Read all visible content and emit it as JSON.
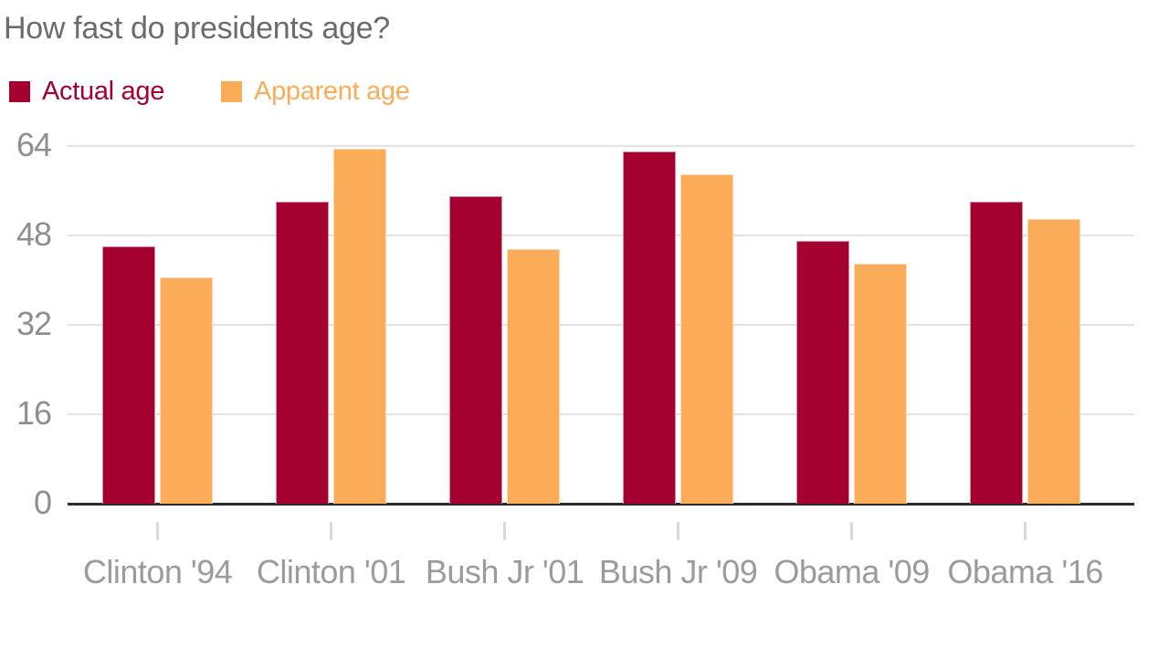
{
  "chart": {
    "title": "How fast do presidents age?"
  },
  "chart_data": {
    "type": "bar",
    "title": "How fast do presidents age?",
    "categories": [
      "Clinton '94",
      "Clinton '01",
      "Bush Jr '01",
      "Bush Jr '09",
      "Obama '09",
      "Obama '16"
    ],
    "series": [
      {
        "name": "Actual age",
        "color": "#a40030",
        "values": [
          46,
          54,
          55,
          63,
          47,
          54
        ]
      },
      {
        "name": "Apparent age",
        "color": "#fbac58",
        "values": [
          40.5,
          63.5,
          45.5,
          59,
          43,
          51
        ]
      }
    ],
    "xlabel": "",
    "ylabel": "",
    "yticks": [
      0,
      16,
      32,
      48,
      64
    ],
    "ylim": [
      0,
      64
    ],
    "grid": "horizontal",
    "legend_position": "top-left"
  }
}
